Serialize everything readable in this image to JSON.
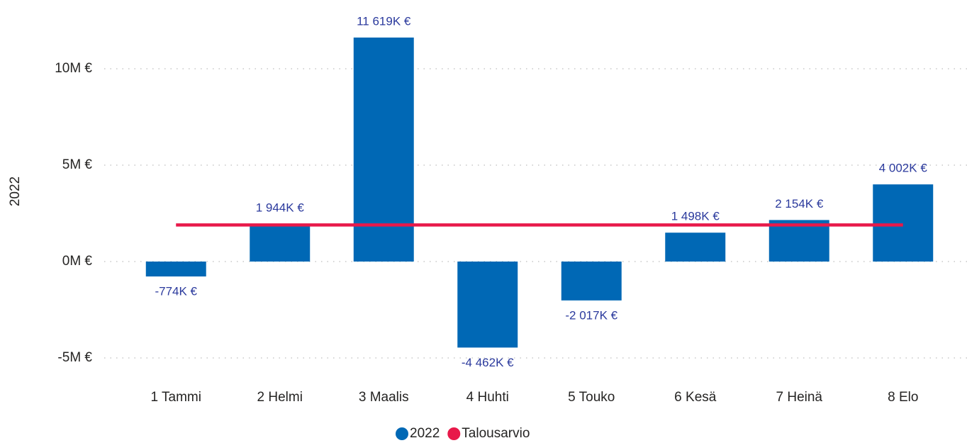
{
  "chart_data": {
    "type": "bar",
    "y_label": "2022",
    "categories": [
      "1 Tammi",
      "2 Helmi",
      "3 Maalis",
      "4 Huhti",
      "5 Touko",
      "6 Kesä",
      "7 Heinä",
      "8 Elo"
    ],
    "series": [
      {
        "name": "2022",
        "type": "bar",
        "color": "#0068b5",
        "values": [
          -0.774,
          1.944,
          11.619,
          -4.462,
          -2.017,
          1.498,
          2.154,
          4.002
        ],
        "value_labels": [
          "-774K €",
          "1 944K €",
          "11 619K €",
          "-4 462K €",
          "-2 017K €",
          "1 498K €",
          "2 154K €",
          "4 002K €"
        ]
      },
      {
        "name": "Talousarvio",
        "type": "line",
        "color": "#e8194a",
        "values": [
          1.9,
          1.9,
          1.9,
          1.9,
          1.9,
          1.9,
          1.9,
          1.9
        ]
      }
    ],
    "ylim": [
      -5.2,
      12
    ],
    "yticks": [
      {
        "value": -5,
        "label": "-5M €"
      },
      {
        "value": 0,
        "label": "0M €"
      },
      {
        "value": 5,
        "label": "5M €"
      },
      {
        "value": 10,
        "label": "10M €"
      }
    ],
    "grid": true,
    "legend": "bottom"
  }
}
